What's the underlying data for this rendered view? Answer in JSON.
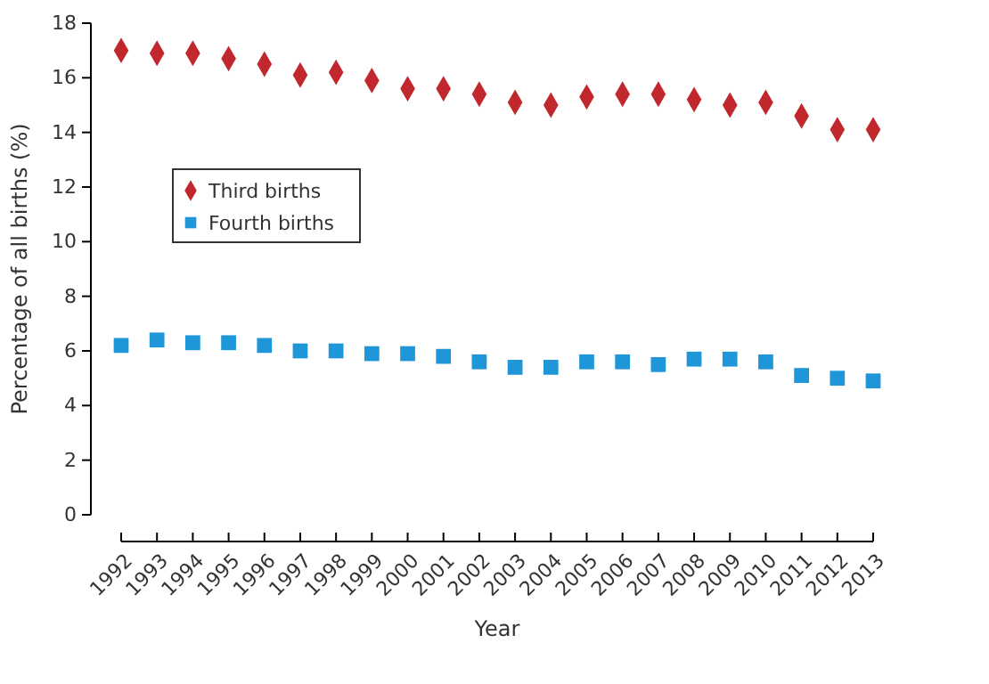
{
  "chart_data": {
    "type": "scatter",
    "xlabel": "Year",
    "ylabel": "Percentage of all births (%)",
    "categories": [
      "1992",
      "1993",
      "1994",
      "1995",
      "1996",
      "1997",
      "1998",
      "1999",
      "2000",
      "2001",
      "2002",
      "2003",
      "2004",
      "2005",
      "2006",
      "2007",
      "2008",
      "2009",
      "2010",
      "2011",
      "2012",
      "2013"
    ],
    "series": [
      {
        "name": "Third births",
        "color": "#c0282d",
        "marker": "diamond",
        "values": [
          17.0,
          16.9,
          16.9,
          16.7,
          16.5,
          16.1,
          16.2,
          15.9,
          15.6,
          15.6,
          15.4,
          15.1,
          15.0,
          15.3,
          15.4,
          15.4,
          15.2,
          15.0,
          15.1,
          14.6,
          14.1,
          14.1
        ]
      },
      {
        "name": "Fourth births",
        "color": "#1e96d7",
        "marker": "square",
        "values": [
          6.2,
          6.4,
          6.3,
          6.3,
          6.2,
          6.0,
          6.0,
          5.9,
          5.9,
          5.8,
          5.6,
          5.4,
          5.4,
          5.6,
          5.6,
          5.5,
          5.7,
          5.7,
          5.6,
          5.1,
          5.0,
          4.9
        ]
      }
    ],
    "ylim": [
      0,
      18
    ],
    "yticks": [
      0,
      2,
      4,
      6,
      8,
      10,
      12,
      14,
      16,
      18
    ],
    "legend": "left",
    "grid": false
  }
}
